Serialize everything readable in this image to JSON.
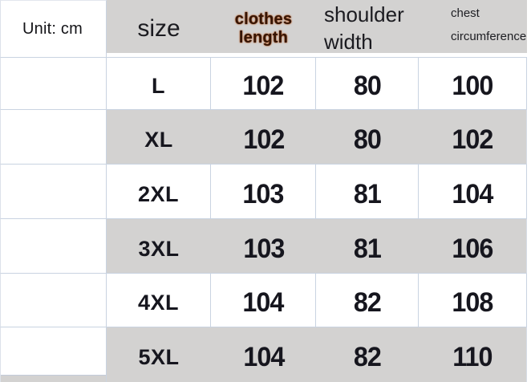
{
  "unit_label": "Unit: cm",
  "header": {
    "size": "size",
    "clothes_length": "clothes length",
    "shoulder_width": "shoulder width",
    "chest_line1": "chest",
    "chest_line2": "circumference"
  },
  "rows": [
    {
      "size": "L",
      "clothes_length": "102",
      "shoulder_width": "80",
      "chest_circumference": "100"
    },
    {
      "size": "XL",
      "clothes_length": "102",
      "shoulder_width": "80",
      "chest_circumference": "102"
    },
    {
      "size": "2XL",
      "clothes_length": "103",
      "shoulder_width": "81",
      "chest_circumference": "104"
    },
    {
      "size": "3XL",
      "clothes_length": "103",
      "shoulder_width": "81",
      "chest_circumference": "106"
    },
    {
      "size": "4XL",
      "clothes_length": "104",
      "shoulder_width": "82",
      "chest_circumference": "108"
    },
    {
      "size": "5XL",
      "clothes_length": "104",
      "shoulder_width": "82",
      "chest_circumference": "110"
    }
  ],
  "colors": {
    "stripe_gray": "#d3d2d1",
    "grid_line": "#c9d3e1",
    "text": "#16161e",
    "accent_header_text": "#351505",
    "accent_glow": "#b5541a",
    "background": "#ffffff"
  },
  "chart_data": {
    "type": "table",
    "title": "Unit: cm",
    "columns": [
      "size",
      "clothes length",
      "shoulder width",
      "chest circumference"
    ],
    "rows": [
      [
        "L",
        102,
        80,
        100
      ],
      [
        "XL",
        102,
        80,
        102
      ],
      [
        "2XL",
        103,
        81,
        104
      ],
      [
        "3XL",
        103,
        81,
        106
      ],
      [
        "4XL",
        104,
        82,
        108
      ],
      [
        "5XL",
        104,
        82,
        110
      ]
    ],
    "layout_hints": "header row and alternating data rows shaded gray; first column white with unit label; clothes-length header emphasized in dark brown/orange"
  }
}
